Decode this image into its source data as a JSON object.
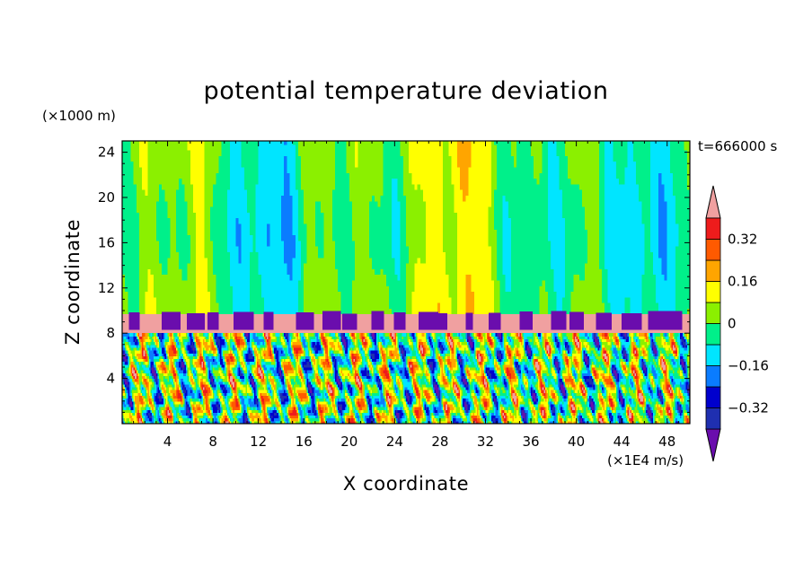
{
  "chart_data": {
    "type": "heatmap",
    "title": "potential temperature deviation",
    "xlabel": "X coordinate",
    "ylabel": "Z coordinate",
    "x_unit": "(×1E4 m/s)",
    "y_unit": "(×1000 m)",
    "annotation": "t=666000 s",
    "xlim": [
      0,
      50
    ],
    "ylim": [
      0,
      25
    ],
    "x_ticks": [
      "4",
      "8",
      "12",
      "16",
      "20",
      "24",
      "28",
      "32",
      "36",
      "40",
      "44",
      "48"
    ],
    "y_ticks": [
      "4",
      "8",
      "12",
      "16",
      "20",
      "24"
    ],
    "colorbar": {
      "labels": [
        "0.32",
        "0.16",
        "0",
        "−0.16",
        "−0.32"
      ],
      "levels": [
        -0.4,
        -0.32,
        -0.24,
        -0.16,
        -0.08,
        0,
        0.08,
        0.16,
        0.24,
        0.32,
        0.4
      ],
      "colors": [
        "#6a0dad",
        "#1f2fb0",
        "#0000cd",
        "#0a7cff",
        "#00e5ff",
        "#00f08a",
        "#8bf000",
        "#ffff00",
        "#ffa500",
        "#ff5a00",
        "#ee1c1c",
        "#f0a0a0"
      ],
      "extend": "both"
    },
    "layers": [
      {
        "z_range": [
          0,
          8
        ],
        "description": "turbulent mixed layer"
      },
      {
        "z_range": [
          8,
          9.7
        ],
        "value_min": 0.4,
        "description": "stable inversion band"
      },
      {
        "z_range": [
          9.7,
          25
        ],
        "description": "upper layer"
      }
    ]
  }
}
